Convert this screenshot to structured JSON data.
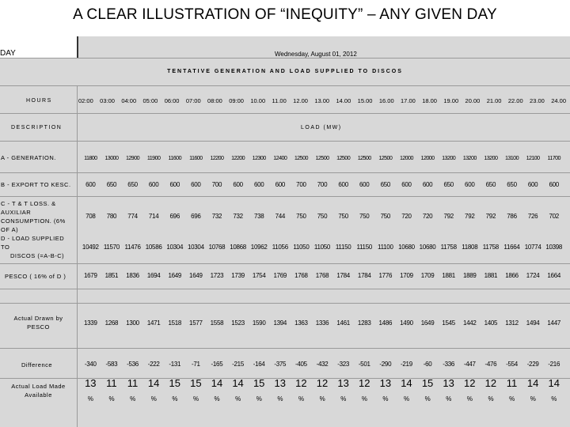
{
  "title": "A CLEAR ILLUSTRATION OF “INEQUITY” – ANY GIVEN DAY",
  "day_label": "DAY",
  "date": "Wednesday, August 01, 2012",
  "subtitle": "TENTATIVE GENERATION AND LOAD SUPPLIED TO DISCOS",
  "hours_label": "HOURS",
  "hours": [
    "02:00",
    "03:00",
    "04:00",
    "05:00",
    "06:00",
    "07:00",
    "08:00",
    "09:00",
    "10.00",
    "11.00",
    "12.00",
    "13.00",
    "14.00",
    "15.00",
    "16.00",
    "17.00",
    "18.00",
    "19.00",
    "20.00",
    "21.00",
    "22.00",
    "23.00",
    "24.00"
  ],
  "description_label": "DESCRIPTION",
  "load_label": "LOAD (MW)",
  "rows": {
    "generation": {
      "label": "A - GENERATION.",
      "values": [
        "11800",
        "13000",
        "12900",
        "11900",
        "11600",
        "11600",
        "12200",
        "12200",
        "12300",
        "12400",
        "12500",
        "12500",
        "12500",
        "12500",
        "12500",
        "12000",
        "12000",
        "13200",
        "13200",
        "13200",
        "13100",
        "12100",
        "11700"
      ]
    },
    "export": {
      "label": "B - EXPORT TO KESC.",
      "values": [
        "600",
        "650",
        "650",
        "600",
        "600",
        "600",
        "700",
        "600",
        "600",
        "600",
        "700",
        "700",
        "600",
        "600",
        "650",
        "600",
        "600",
        "650",
        "600",
        "650",
        "650",
        "600",
        "600"
      ]
    },
    "losses": {
      "label_lines": [
        "C - T & T LOSS. &",
        "AUXILIAR",
        "CONSUMPTION. (6%",
        "OF A)"
      ],
      "values": [
        "708",
        "780",
        "774",
        "714",
        "696",
        "696",
        "732",
        "732",
        "738",
        "744",
        "750",
        "750",
        "750",
        "750",
        "750",
        "720",
        "720",
        "792",
        "792",
        "792",
        "786",
        "726",
        "702"
      ]
    },
    "load_supplied": {
      "label_lines": [
        "D - LOAD SUPPLIED",
        "TO",
        "DISCOS (=A-B-C)"
      ],
      "values": [
        "10492",
        "11570",
        "11476",
        "10586",
        "10304",
        "10304",
        "10768",
        "10868",
        "10962",
        "11056",
        "11050",
        "11050",
        "11150",
        "11150",
        "11100",
        "10680",
        "10680",
        "11758",
        "11808",
        "11758",
        "11664",
        "10774",
        "10398"
      ]
    },
    "pesco": {
      "label": "PESCO ( 16% of D )",
      "values": [
        "1679",
        "1851",
        "1836",
        "1694",
        "1649",
        "1649",
        "1723",
        "1739",
        "1754",
        "1769",
        "1768",
        "1768",
        "1784",
        "1784",
        "1776",
        "1709",
        "1709",
        "1881",
        "1889",
        "1881",
        "1866",
        "1724",
        "1664"
      ]
    },
    "actual_drawn": {
      "label_lines": [
        "Actual Drawn by",
        "PESCO"
      ],
      "values": [
        "1339",
        "1268",
        "1300",
        "1471",
        "1518",
        "1577",
        "1558",
        "1523",
        "1590",
        "1394",
        "1363",
        "1336",
        "1461",
        "1283",
        "1486",
        "1490",
        "1649",
        "1545",
        "1442",
        "1405",
        "1312",
        "1494",
        "1447"
      ]
    },
    "difference": {
      "label": "Difference",
      "values": [
        "-340",
        "-583",
        "-536",
        "-222",
        "-131",
        "-71",
        "-165",
        "-215",
        "-164",
        "-375",
        "-405",
        "-432",
        "-323",
        "-501",
        "-290",
        "-219",
        "-60",
        "-336",
        "-447",
        "-476",
        "-554",
        "-229",
        "-216"
      ]
    },
    "actual_load": {
      "label_lines": [
        "Actual Load Made",
        "Available"
      ],
      "values": [
        "13",
        "11",
        "11",
        "14",
        "15",
        "15",
        "14",
        "14",
        "15",
        "13",
        "12",
        "12",
        "13",
        "12",
        "13",
        "14",
        "15",
        "13",
        "12",
        "12",
        "11",
        "14",
        "14"
      ],
      "unit": "%"
    }
  }
}
